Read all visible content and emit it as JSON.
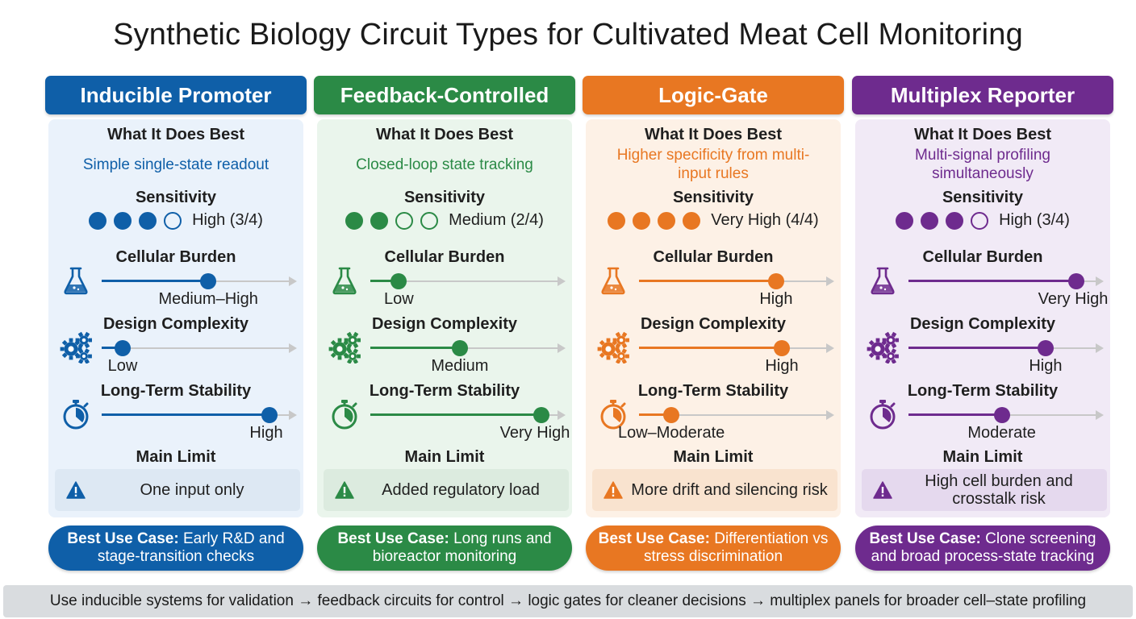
{
  "title": "Synthetic Biology Circuit Types for Cultivated Meat Cell Monitoring",
  "labels": {
    "best": "What It Does Best",
    "sensitivity": "Sensitivity",
    "burden": "Cellular Burden",
    "complexity": "Design Complexity",
    "stability": "Long-Term Stability",
    "limit": "Main Limit",
    "usecase_prefix": "Best Use Case:"
  },
  "columns": [
    {
      "name": "Inducible Promoter",
      "color": "#0f5fa8",
      "panel_bg": "#eaf2fb",
      "limit_bg": "#dde8f3",
      "best_desc": "Simple single-state readout",
      "sensitivity": {
        "level": 3,
        "max": 4,
        "text": "High (3/4)"
      },
      "burden": {
        "level": 0.56,
        "text": "Medium–High"
      },
      "complexity": {
        "level": 0.11,
        "text": "Low"
      },
      "stability": {
        "level": 0.88,
        "text": "High"
      },
      "limit": "One input only",
      "usecase": "Early R&D and stage-transition checks",
      "icons": [
        "flask-icon",
        "gears-icon",
        "stopwatch-icon",
        "warning-icon"
      ]
    },
    {
      "name": "Feedback-Controlled",
      "color": "#2b8a46",
      "panel_bg": "#eaf5ec",
      "limit_bg": "#dcebdf",
      "best_desc": "Closed-loop state tracking",
      "sensitivity": {
        "level": 2,
        "max": 4,
        "text": "Medium (2/4)"
      },
      "burden": {
        "level": 0.15,
        "text": "Low"
      },
      "complexity": {
        "level": 0.47,
        "text": "Medium"
      },
      "stability": {
        "level": 0.9,
        "text": "Very High"
      },
      "limit": "Added regulatory load",
      "usecase": "Long runs and bioreactor monitoring",
      "icons": [
        "flask-icon",
        "gears-icon",
        "stopwatch-icon",
        "warning-icon"
      ]
    },
    {
      "name": "Logic-Gate",
      "color": "#e87722",
      "panel_bg": "#fdf1e6",
      "limit_bg": "#f9e3cf",
      "best_desc": "Higher specificity from multi-input rules",
      "sensitivity": {
        "level": 4,
        "max": 4,
        "text": "Very High (4/4)"
      },
      "burden": {
        "level": 0.72,
        "text": "High"
      },
      "complexity": {
        "level": 0.75,
        "text": "High"
      },
      "stability": {
        "level": 0.17,
        "text": "Low–Moderate"
      },
      "limit": "More drift and silencing risk",
      "usecase": "Differentiation vs stress discrimination",
      "icons": [
        "flask-icon",
        "gears-icon",
        "stopwatch-icon",
        "warning-icon"
      ]
    },
    {
      "name": "Multiplex Reporter",
      "color": "#6e2b8e",
      "panel_bg": "#f1eaf6",
      "limit_bg": "#e5d9ee",
      "best_desc": "Multi-signal profiling simultaneously",
      "sensitivity": {
        "level": 3,
        "max": 4,
        "text": "High (3/4)"
      },
      "burden": {
        "level": 0.88,
        "text": "Very High"
      },
      "complexity": {
        "level": 0.72,
        "text": "High"
      },
      "stability": {
        "level": 0.49,
        "text": "Moderate"
      },
      "limit": "High cell burden and crosstalk risk",
      "usecase": "Clone screening and broad process-state tracking",
      "icons": [
        "flask-icon",
        "gears-icon",
        "stopwatch-icon",
        "warning-icon"
      ]
    }
  ],
  "footer": "Use inducible systems for validation → feedback circuits for control → logic gates for cleaner decisions → multiplex panels for broader cell–state profiling"
}
